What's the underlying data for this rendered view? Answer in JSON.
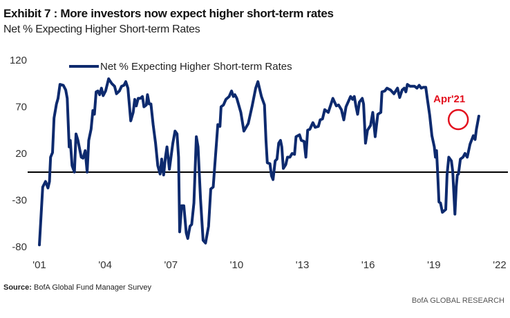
{
  "title": "Exhibit 7 : More investors now expect higher short-term rates",
  "subtitle": "Net % Expecting Higher Short-term Rates",
  "source_label": "Source:",
  "source_text": "BofA Global Fund Manager Survey",
  "credit": "BofA GLOBAL RESEARCH",
  "chart_data": {
    "type": "line",
    "title": "Exhibit 7 : More investors now expect higher short-term rates",
    "subtitle": "Net % Expecting Higher Short-term Rates",
    "xlabel": "",
    "ylabel": "",
    "xlim": [
      2001,
      2022
    ],
    "ylim": [
      -80,
      120
    ],
    "x_ticks": [
      2001,
      2004,
      2007,
      2010,
      2013,
      2016,
      2019,
      2022
    ],
    "x_tick_labels": [
      "'01",
      "'04",
      "'07",
      "'10",
      "'13",
      "'16",
      "'19",
      "'22"
    ],
    "y_ticks": [
      120,
      70,
      20,
      -30,
      -80
    ],
    "y_tick_labels": [
      "120",
      "70",
      "20",
      "-30",
      "-80"
    ],
    "grid": false,
    "zero_line": true,
    "legend_position": "top-left",
    "colors": {
      "series": "#0d2a6e",
      "annotation": "#e3101e",
      "zero_line": "#000000"
    },
    "annotation": {
      "label": "Apr'21",
      "x": 2020.05,
      "y": 60,
      "shape": "circle"
    },
    "series": [
      {
        "name": "Net % Expecting Higher Short-term Rates",
        "points": [
          [
            2001.0,
            -78
          ],
          [
            2001.15,
            -16
          ],
          [
            2001.28,
            -10
          ],
          [
            2001.39,
            -17
          ],
          [
            2001.46,
            -10
          ],
          [
            2001.51,
            16
          ],
          [
            2001.6,
            21
          ],
          [
            2001.67,
            58
          ],
          [
            2001.78,
            73
          ],
          [
            2001.85,
            79
          ],
          [
            2001.94,
            94
          ],
          [
            2002.09,
            93
          ],
          [
            2002.2,
            88
          ],
          [
            2002.27,
            79
          ],
          [
            2002.36,
            27
          ],
          [
            2002.41,
            34
          ],
          [
            2002.49,
            7
          ],
          [
            2002.6,
            0
          ],
          [
            2002.67,
            41
          ],
          [
            2002.76,
            34
          ],
          [
            2002.91,
            16
          ],
          [
            2002.99,
            15
          ],
          [
            2003.09,
            23
          ],
          [
            2003.18,
            0
          ],
          [
            2003.25,
            34
          ],
          [
            2003.36,
            46
          ],
          [
            2003.44,
            66
          ],
          [
            2003.51,
            62
          ],
          [
            2003.59,
            86
          ],
          [
            2003.67,
            87
          ],
          [
            2003.75,
            83
          ],
          [
            2003.83,
            90
          ],
          [
            2003.91,
            82
          ],
          [
            2004.02,
            87
          ],
          [
            2004.16,
            100
          ],
          [
            2004.3,
            95
          ],
          [
            2004.43,
            92
          ],
          [
            2004.52,
            84
          ],
          [
            2004.65,
            87
          ],
          [
            2004.75,
            92
          ],
          [
            2004.86,
            93
          ],
          [
            2004.94,
            97
          ],
          [
            2005.04,
            90
          ],
          [
            2005.17,
            55
          ],
          [
            2005.28,
            64
          ],
          [
            2005.35,
            78
          ],
          [
            2005.42,
            71
          ],
          [
            2005.51,
            79
          ],
          [
            2005.61,
            79
          ],
          [
            2005.7,
            81
          ],
          [
            2005.77,
            70
          ],
          [
            2005.88,
            72
          ],
          [
            2005.93,
            83
          ],
          [
            2006.01,
            73
          ],
          [
            2006.09,
            73
          ],
          [
            2006.19,
            51
          ],
          [
            2006.3,
            31
          ],
          [
            2006.4,
            7
          ],
          [
            2006.51,
            -2
          ],
          [
            2006.58,
            14
          ],
          [
            2006.67,
            -3
          ],
          [
            2006.75,
            16
          ],
          [
            2006.82,
            27
          ],
          [
            2006.93,
            3
          ],
          [
            2007.09,
            31
          ],
          [
            2007.19,
            44
          ],
          [
            2007.28,
            41
          ],
          [
            2007.35,
            16
          ],
          [
            2007.4,
            -64
          ],
          [
            2007.49,
            -36
          ],
          [
            2007.59,
            -36
          ],
          [
            2007.7,
            -65
          ],
          [
            2007.77,
            -71
          ],
          [
            2007.87,
            -58
          ],
          [
            2007.95,
            -56
          ],
          [
            2008.05,
            -33
          ],
          [
            2008.16,
            38
          ],
          [
            2008.24,
            27
          ],
          [
            2008.35,
            -28
          ],
          [
            2008.47,
            -73
          ],
          [
            2008.58,
            -76
          ],
          [
            2008.72,
            -58
          ],
          [
            2008.82,
            -18
          ],
          [
            2008.93,
            -16
          ],
          [
            2009.03,
            16
          ],
          [
            2009.14,
            51
          ],
          [
            2009.24,
            49
          ],
          [
            2009.29,
            70
          ],
          [
            2009.4,
            72
          ],
          [
            2009.51,
            78
          ],
          [
            2009.66,
            81
          ],
          [
            2009.77,
            87
          ],
          [
            2009.85,
            81
          ],
          [
            2009.92,
            83
          ],
          [
            2010.01,
            79
          ],
          [
            2010.19,
            64
          ],
          [
            2010.33,
            44
          ],
          [
            2010.53,
            52
          ],
          [
            2010.71,
            71
          ],
          [
            2010.87,
            90
          ],
          [
            2010.97,
            97
          ],
          [
            2011.13,
            81
          ],
          [
            2011.27,
            72
          ],
          [
            2011.34,
            34
          ],
          [
            2011.4,
            10
          ],
          [
            2011.52,
            9
          ],
          [
            2011.59,
            -4
          ],
          [
            2011.66,
            -8
          ],
          [
            2011.76,
            12
          ],
          [
            2011.84,
            14
          ],
          [
            2011.92,
            31
          ],
          [
            2012.0,
            34
          ],
          [
            2012.06,
            27
          ],
          [
            2012.13,
            4
          ],
          [
            2012.24,
            8
          ],
          [
            2012.32,
            16
          ],
          [
            2012.43,
            16
          ],
          [
            2012.53,
            20
          ],
          [
            2012.64,
            19
          ],
          [
            2012.71,
            38
          ],
          [
            2012.87,
            40
          ],
          [
            2012.95,
            34
          ],
          [
            2013.08,
            33
          ],
          [
            2013.16,
            16
          ],
          [
            2013.24,
            45
          ],
          [
            2013.34,
            46
          ],
          [
            2013.48,
            53
          ],
          [
            2013.58,
            48
          ],
          [
            2013.73,
            49
          ],
          [
            2013.81,
            56
          ],
          [
            2013.92,
            57
          ],
          [
            2014.02,
            67
          ],
          [
            2014.18,
            64
          ],
          [
            2014.39,
            79
          ],
          [
            2014.55,
            71
          ],
          [
            2014.65,
            72
          ],
          [
            2014.78,
            67
          ],
          [
            2014.89,
            56
          ],
          [
            2014.99,
            70
          ],
          [
            2015.2,
            81
          ],
          [
            2015.29,
            78
          ],
          [
            2015.37,
            81
          ],
          [
            2015.44,
            71
          ],
          [
            2015.52,
            62
          ],
          [
            2015.6,
            75
          ],
          [
            2015.73,
            79
          ],
          [
            2015.79,
            73
          ],
          [
            2015.88,
            31
          ],
          [
            2015.97,
            45
          ],
          [
            2016.11,
            50
          ],
          [
            2016.21,
            64
          ],
          [
            2016.32,
            38
          ],
          [
            2016.44,
            62
          ],
          [
            2016.58,
            64
          ],
          [
            2016.63,
            86
          ],
          [
            2016.76,
            87
          ],
          [
            2016.86,
            90
          ],
          [
            2017.02,
            88
          ],
          [
            2017.18,
            84
          ],
          [
            2017.34,
            90
          ],
          [
            2017.44,
            80
          ],
          [
            2017.55,
            88
          ],
          [
            2017.65,
            90
          ],
          [
            2017.72,
            86
          ],
          [
            2017.79,
            94
          ],
          [
            2017.91,
            92
          ],
          [
            2018.12,
            92
          ],
          [
            2018.23,
            90
          ],
          [
            2018.33,
            93
          ],
          [
            2018.42,
            90
          ],
          [
            2018.52,
            91
          ],
          [
            2018.63,
            91
          ],
          [
            2018.7,
            79
          ],
          [
            2018.81,
            61
          ],
          [
            2018.91,
            39
          ],
          [
            2019.02,
            27
          ],
          [
            2019.07,
            16
          ],
          [
            2019.12,
            23
          ],
          [
            2019.17,
            1
          ],
          [
            2019.23,
            -32
          ],
          [
            2019.3,
            -33
          ],
          [
            2019.39,
            -43
          ],
          [
            2019.54,
            -40
          ],
          [
            2019.6,
            -3
          ],
          [
            2019.68,
            16
          ],
          [
            2019.8,
            12
          ],
          [
            2019.86,
            1
          ],
          [
            2019.96,
            -45
          ],
          [
            2020.02,
            -16
          ],
          [
            2020.07,
            -3
          ],
          [
            2020.12,
            -2
          ],
          [
            2020.21,
            14
          ],
          [
            2020.33,
            16
          ],
          [
            2020.42,
            20
          ],
          [
            2020.52,
            16
          ],
          [
            2020.65,
            30
          ],
          [
            2020.8,
            39
          ],
          [
            2020.88,
            35
          ],
          [
            2020.94,
            46
          ],
          [
            2021.05,
            60
          ]
        ]
      }
    ]
  }
}
